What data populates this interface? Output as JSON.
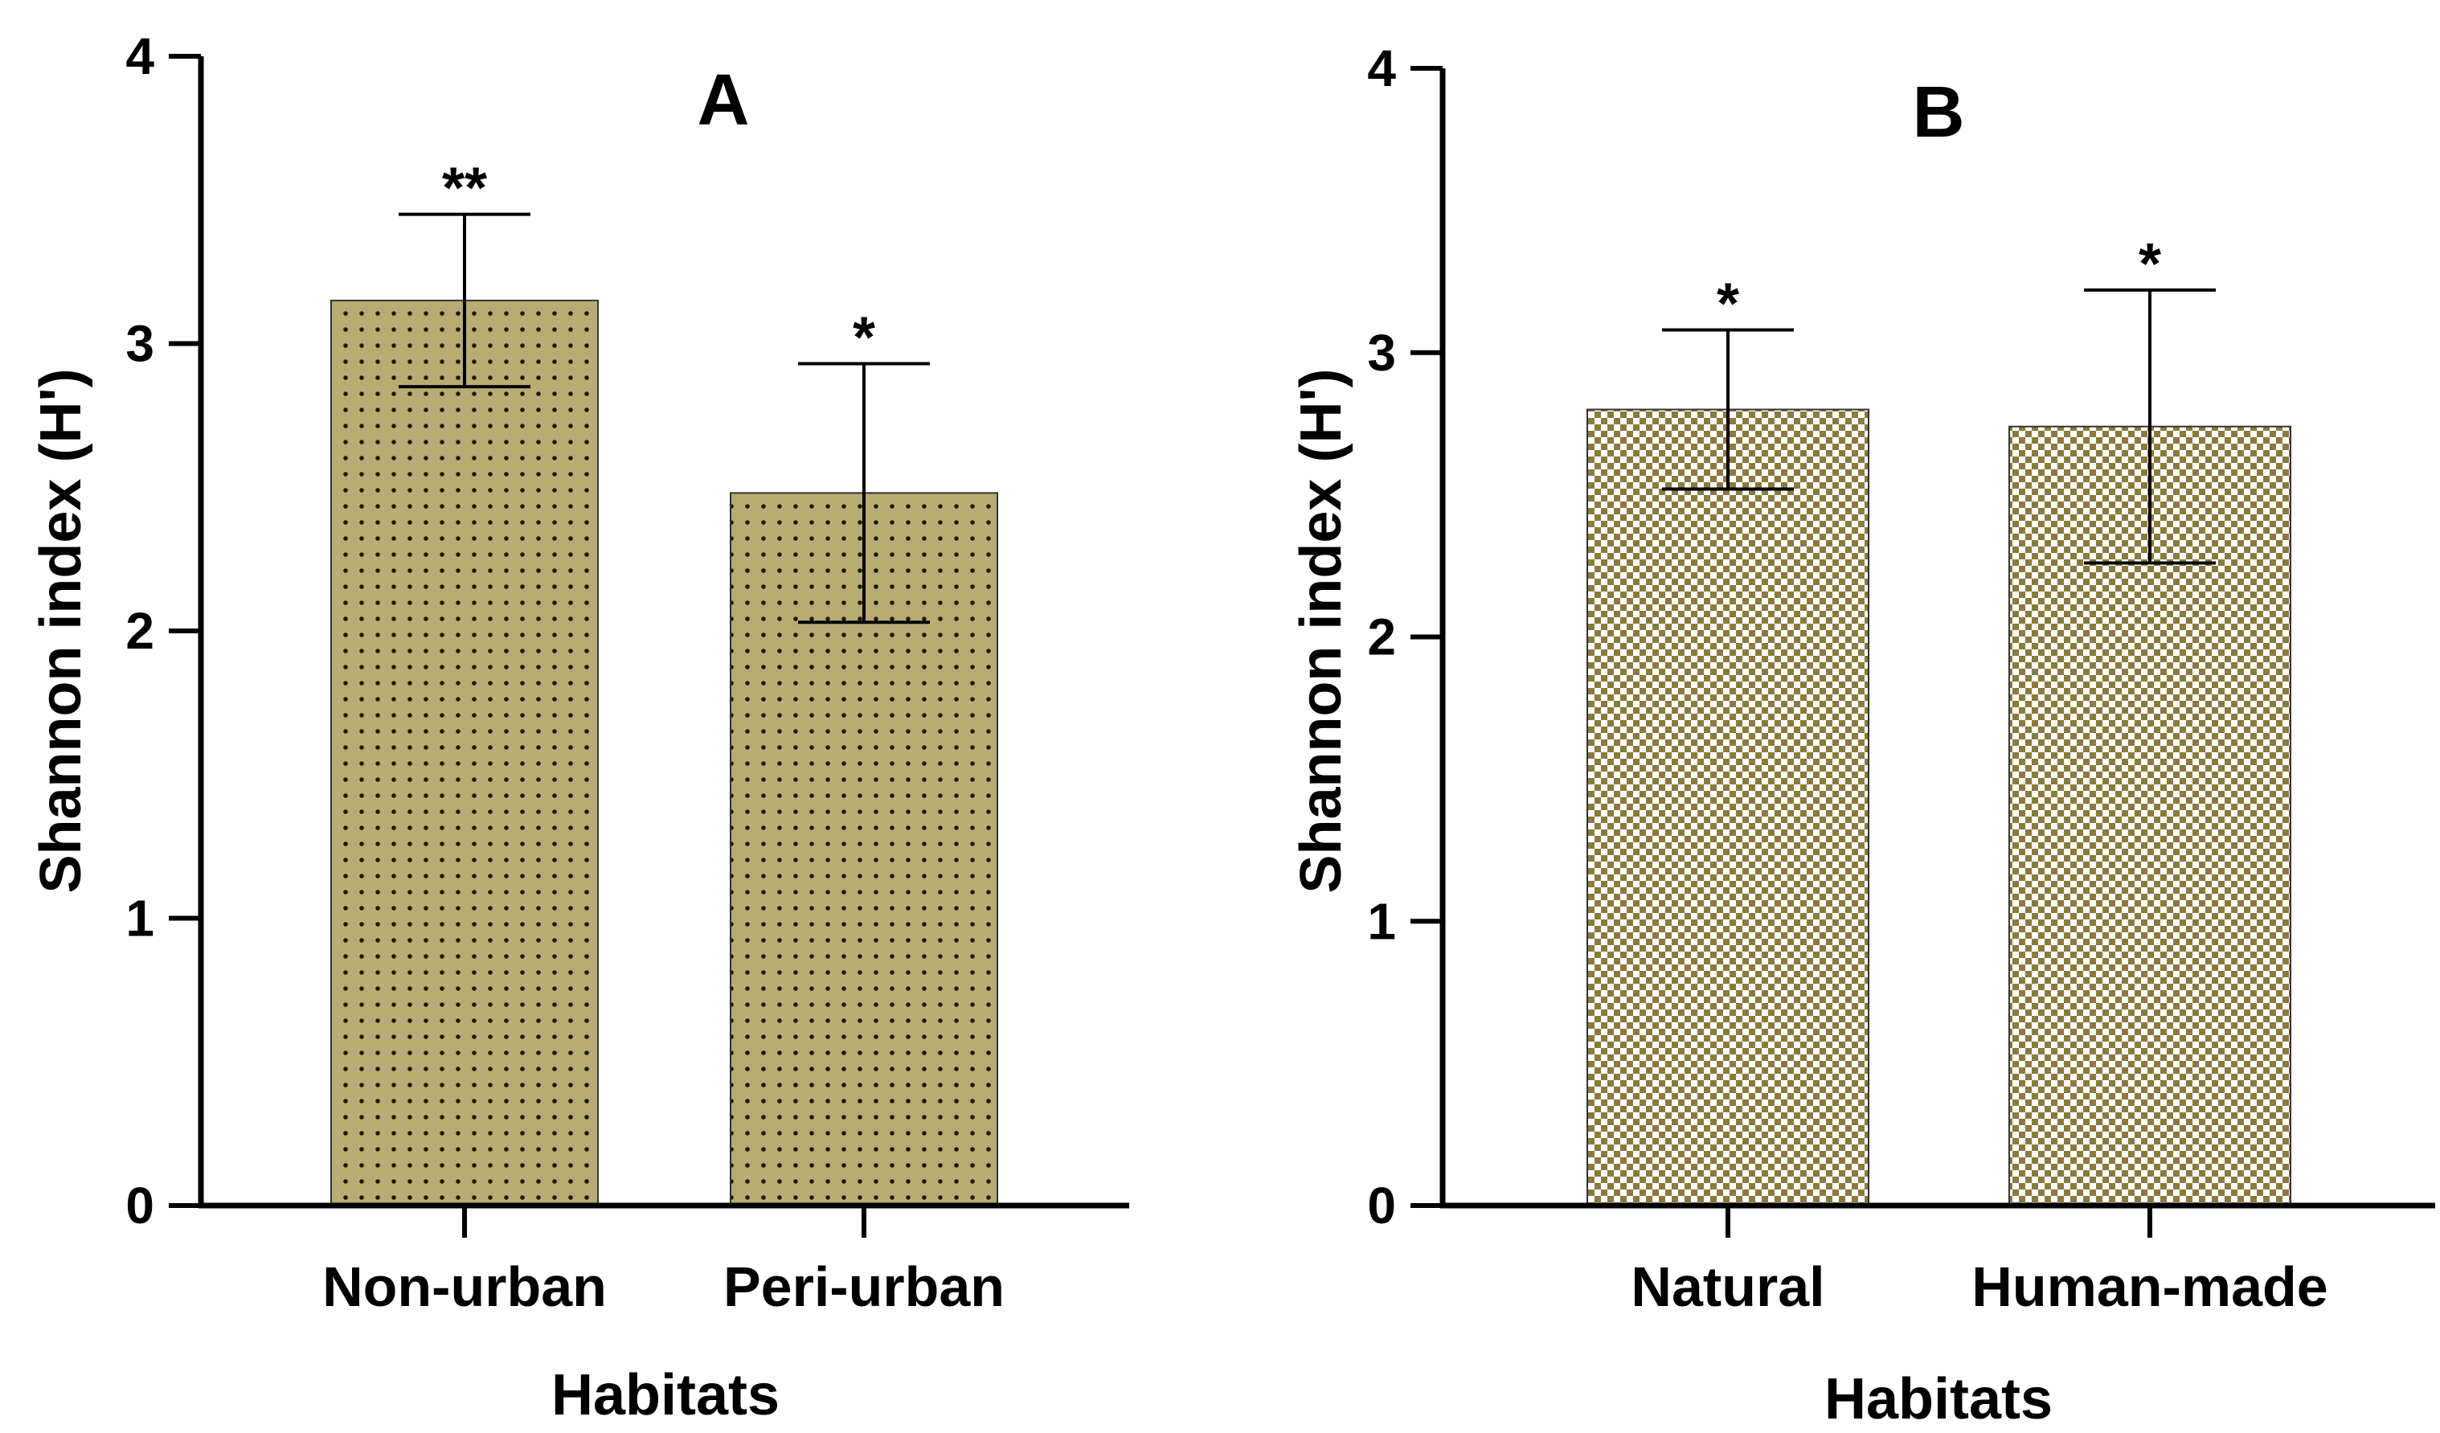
{
  "chart_data": [
    {
      "type": "bar",
      "panel": "A",
      "title": "A",
      "xlabel": "Habitats",
      "ylabel": "Shannon index (H')",
      "ylim": [
        0,
        4
      ],
      "yticks": [
        "0",
        "1",
        "2",
        "3",
        "4"
      ],
      "categories": [
        "Non-urban",
        "Peri-urban"
      ],
      "values": [
        3.15,
        2.48
      ],
      "error": [
        0.3,
        0.45
      ],
      "significance": [
        "**",
        "*"
      ],
      "pattern": "dots",
      "bar_color": "#b8ac72"
    },
    {
      "type": "bar",
      "panel": "B",
      "title": "B",
      "xlabel": "Habitats",
      "ylabel": "Shannon index (H')",
      "ylim": [
        0,
        4
      ],
      "yticks": [
        "0",
        "1",
        "2",
        "3",
        "4"
      ],
      "categories": [
        "Natural",
        "Human-made"
      ],
      "values": [
        2.8,
        2.74
      ],
      "error": [
        0.28,
        0.48
      ],
      "significance": [
        "*",
        "*"
      ],
      "pattern": "checker",
      "bar_color": "#b8ac72"
    }
  ]
}
